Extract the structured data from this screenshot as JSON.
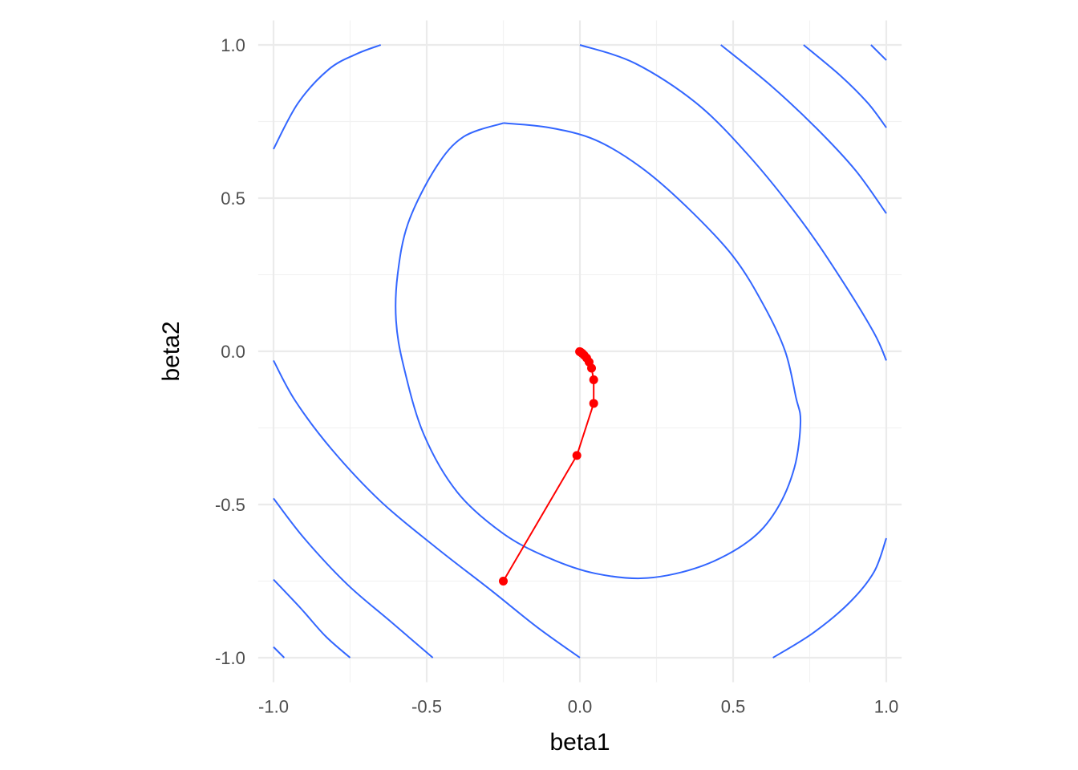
{
  "chart_data": {
    "type": "line",
    "title": "",
    "xlabel": "beta1",
    "ylabel": "beta2",
    "xlim": [
      -1.05,
      1.05
    ],
    "ylim": [
      -1.08,
      1.08
    ],
    "x_ticks": [
      -1.0,
      -0.5,
      0.0,
      0.5,
      1.0
    ],
    "y_ticks": [
      -1.0,
      -0.5,
      0.0,
      0.5,
      1.0
    ],
    "x_tick_labels": [
      "-1.0",
      "-0.5",
      "0.0",
      "0.5",
      "1.0"
    ],
    "y_tick_labels": [
      "-1.0",
      "-0.5",
      "0.0",
      "0.5",
      "1.0"
    ],
    "grid": true,
    "legend": "none",
    "contour_color": "#3366FF",
    "path_color": "#FF0000",
    "contours": [
      {
        "points": [
          [
            -1.0,
            0.66
          ],
          [
            -0.92,
            0.81
          ],
          [
            -0.82,
            0.92
          ],
          [
            -0.73,
            0.97
          ],
          [
            -0.65,
            1.0
          ]
        ]
      },
      {
        "points": [
          [
            -0.25,
            0.745
          ],
          [
            -0.1,
            0.73
          ],
          [
            0.05,
            0.69
          ],
          [
            0.2,
            0.6
          ],
          [
            0.35,
            0.47
          ],
          [
            0.5,
            0.31
          ],
          [
            0.6,
            0.15
          ],
          [
            0.67,
            0.0
          ],
          [
            0.705,
            -0.15
          ],
          [
            0.72,
            -0.23
          ],
          [
            0.7,
            -0.38
          ],
          [
            0.64,
            -0.52
          ],
          [
            0.55,
            -0.62
          ],
          [
            0.4,
            -0.7
          ],
          [
            0.22,
            -0.74
          ],
          [
            0.05,
            -0.725
          ],
          [
            -0.1,
            -0.675
          ],
          [
            -0.25,
            -0.595
          ],
          [
            -0.4,
            -0.46
          ],
          [
            -0.51,
            -0.27
          ],
          [
            -0.575,
            -0.05
          ],
          [
            -0.6,
            0.1
          ],
          [
            -0.595,
            0.25
          ],
          [
            -0.56,
            0.42
          ],
          [
            -0.47,
            0.6
          ],
          [
            -0.38,
            0.7
          ],
          [
            -0.25,
            0.745
          ]
        ]
      },
      {
        "points": [
          [
            0.0,
            1.0
          ],
          [
            0.18,
            0.94
          ],
          [
            0.38,
            0.81
          ],
          [
            0.55,
            0.64
          ],
          [
            0.72,
            0.43
          ],
          [
            0.85,
            0.24
          ],
          [
            0.96,
            0.06
          ],
          [
            1.0,
            -0.03
          ]
        ]
      },
      {
        "points": [
          [
            -1.0,
            -0.03
          ],
          [
            -0.93,
            -0.16
          ],
          [
            -0.81,
            -0.32
          ],
          [
            -0.65,
            -0.49
          ],
          [
            -0.47,
            -0.64
          ],
          [
            -0.29,
            -0.78
          ],
          [
            -0.14,
            -0.9
          ],
          [
            0.0,
            -1.0
          ]
        ]
      },
      {
        "points": [
          [
            0.46,
            1.0
          ],
          [
            0.62,
            0.87
          ],
          [
            0.77,
            0.73
          ],
          [
            0.9,
            0.59
          ],
          [
            1.0,
            0.45
          ]
        ]
      },
      {
        "points": [
          [
            -1.0,
            -0.48
          ],
          [
            -0.9,
            -0.61
          ],
          [
            -0.76,
            -0.76
          ],
          [
            -0.62,
            -0.88
          ],
          [
            -0.48,
            -1.0
          ]
        ]
      },
      {
        "points": [
          [
            0.73,
            1.0
          ],
          [
            0.85,
            0.9
          ],
          [
            0.94,
            0.81
          ],
          [
            1.0,
            0.73
          ]
        ]
      },
      {
        "points": [
          [
            -1.0,
            -0.745
          ],
          [
            -0.91,
            -0.84
          ],
          [
            -0.83,
            -0.93
          ],
          [
            -0.75,
            -1.0
          ]
        ]
      },
      {
        "points": [
          [
            0.95,
            1.0
          ],
          [
            1.0,
            0.95
          ]
        ]
      },
      {
        "points": [
          [
            -1.0,
            -0.965
          ],
          [
            -0.965,
            -1.0
          ]
        ]
      },
      {
        "points": [
          [
            0.63,
            -1.0
          ],
          [
            0.76,
            -0.92
          ],
          [
            0.88,
            -0.82
          ],
          [
            0.96,
            -0.72
          ],
          [
            1.0,
            -0.61
          ]
        ]
      }
    ],
    "series": [
      {
        "x": [
          -0.25,
          -0.01,
          0.045,
          0.045,
          0.038,
          0.03,
          0.022,
          0.014,
          0.008,
          0.004,
          0.001,
          -0.001
        ],
        "y": [
          -0.75,
          -0.34,
          -0.17,
          -0.093,
          -0.055,
          -0.035,
          -0.022,
          -0.013,
          -0.007,
          -0.004,
          -0.002,
          -0.001
        ]
      }
    ]
  }
}
